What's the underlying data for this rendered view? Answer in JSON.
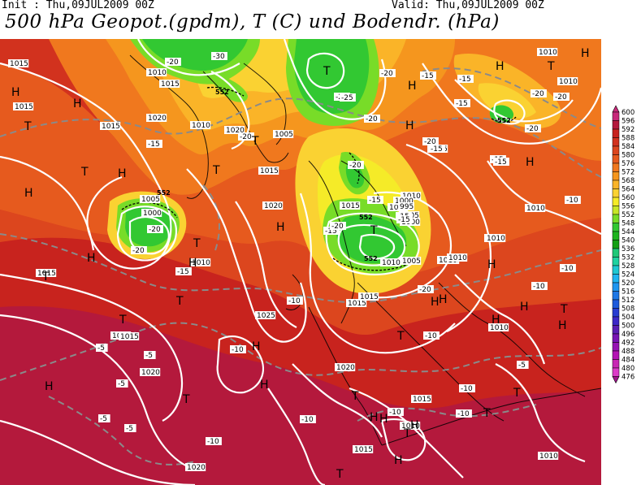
{
  "header": {
    "init": "Init : Thu,09JUL2009 00Z",
    "valid": "Valid: Thu,09JUL2009 00Z",
    "title": "500 hPa Geopot.(gpdm), T (C) und Bodendr. (hPa)"
  },
  "legend": {
    "levels": [
      "600",
      "596",
      "592",
      "588",
      "584",
      "580",
      "576",
      "572",
      "568",
      "564",
      "560",
      "556",
      "552",
      "548",
      "544",
      "540",
      "536",
      "532",
      "528",
      "524",
      "520",
      "516",
      "512",
      "508",
      "504",
      "500",
      "496",
      "492",
      "488",
      "484",
      "480",
      "476"
    ],
    "colors": [
      "#c8287a",
      "#b4193c",
      "#c8231e",
      "#d2321e",
      "#dc461e",
      "#e65a1e",
      "#f0781e",
      "#f5961e",
      "#fab428",
      "#fad232",
      "#f5eb28",
      "#c8e628",
      "#78dc28",
      "#32c832",
      "#1eb41e",
      "#14a014",
      "#1ec878",
      "#1ed2a0",
      "#1ec8d2",
      "#1eb4f0",
      "#1e96f0",
      "#1e78e6",
      "#1e5adc",
      "#283cd2",
      "#3c28c8",
      "#5a1eb4",
      "#7814b4",
      "#9614b4",
      "#b414b4",
      "#c828b4",
      "#dc3cc8",
      "#a0148c"
    ]
  },
  "map_labels": {
    "pressure_highs": [
      "H",
      "H",
      "H",
      "H",
      "H",
      "H",
      "H",
      "H",
      "H",
      "H",
      "H",
      "H",
      "H",
      "H",
      "H",
      "H",
      "H",
      "H",
      "H",
      "H",
      "H",
      "H",
      "H",
      "H",
      "H"
    ],
    "pressure_lows": [
      "T",
      "T",
      "T",
      "T",
      "T",
      "T",
      "T",
      "T",
      "T",
      "T",
      "T",
      "T",
      "T",
      "T",
      "T",
      "T",
      "T",
      "T",
      "T"
    ],
    "isobar_values": [
      "1015",
      "1010",
      "1015",
      "1015",
      "1010",
      "1020",
      "1015",
      "1015",
      "1010",
      "1005",
      "1000",
      "1020",
      "1015",
      "1010",
      "1010",
      "1005",
      "1015",
      "1010",
      "1015",
      "1015",
      "1010",
      "1000",
      "1005",
      "1000",
      "995",
      "1005",
      "1005",
      "1010",
      "1015",
      "1015",
      "1020",
      "1025",
      "1020",
      "1015",
      "1010",
      "1010",
      "1020",
      "1010",
      "1015",
      "1010",
      "1010",
      "1010",
      "1010",
      "1015",
      "1005",
      "1020"
    ],
    "temperature_values": [
      "-30",
      "-20",
      "-25",
      "-20",
      "-20",
      "-20",
      "-15",
      "-15",
      "-15",
      "-20",
      "-20",
      "-20",
      "-20",
      "-15",
      "-15",
      "-15",
      "-15",
      "-15",
      "-10",
      "-10",
      "-10",
      "-5",
      "-5",
      "-5",
      "-5",
      "-5",
      "-10",
      "-10",
      "-10",
      "-10",
      "-10",
      "-5",
      "-10",
      "-10",
      "-10",
      "-15",
      "-15",
      "-20",
      "-20",
      "-25",
      "-20",
      "-15",
      "-15",
      "-20",
      "-20",
      "-15"
    ],
    "geopotential_values": [
      "552",
      "552",
      "552",
      "552",
      "552"
    ]
  }
}
